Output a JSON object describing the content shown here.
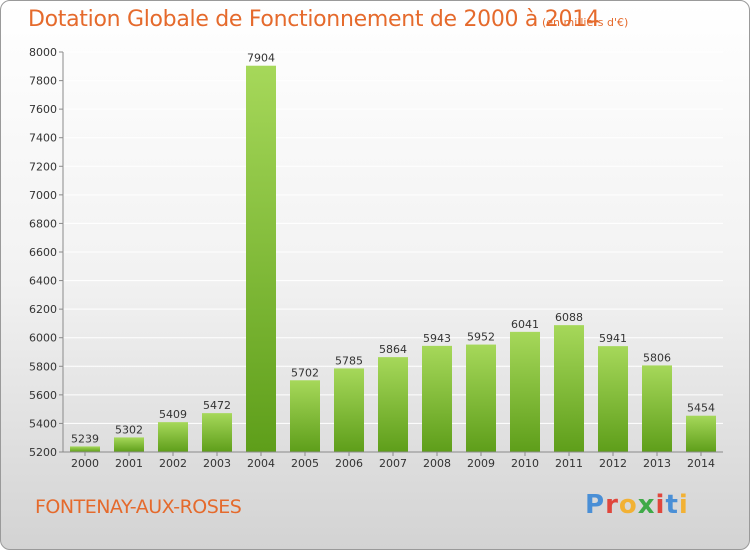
{
  "header": {
    "title": "Dotation Globale de Fonctionnement de 2000 à 2014",
    "unit": "(en milliers d'€)"
  },
  "footer": {
    "city": "FONTENAY-AUX-ROSES",
    "logo_letters": [
      "P",
      "r",
      "o",
      "x",
      "i",
      "t",
      "i"
    ],
    "logo_colors": [
      "#4a8fd6",
      "#e0463c",
      "#f2b134",
      "#3faa48",
      "#e0463c",
      "#4a8fd6",
      "#f2b134"
    ]
  },
  "chart_data": {
    "type": "bar",
    "title": "Dotation Globale de Fonctionnement de 2000 à 2014",
    "xlabel": "",
    "ylabel": "",
    "categories": [
      "2000",
      "2001",
      "2002",
      "2003",
      "2004",
      "2005",
      "2006",
      "2007",
      "2008",
      "2009",
      "2010",
      "2011",
      "2012",
      "2013",
      "2014"
    ],
    "values": [
      5239,
      5302,
      5409,
      5472,
      7904,
      5702,
      5785,
      5864,
      5943,
      5952,
      6041,
      6088,
      5941,
      5806,
      5454
    ],
    "ylim": [
      5200,
      8000
    ],
    "yticks": [
      5200,
      5400,
      5600,
      5800,
      6000,
      6200,
      6400,
      6600,
      6800,
      7000,
      7200,
      7400,
      7600,
      7800,
      8000
    ],
    "grid": true,
    "colors": {
      "bar_top": "#a6d85a",
      "bar_bottom": "#5e9e1a",
      "grid": "#ffffff",
      "axis": "#8a8a8a"
    }
  }
}
